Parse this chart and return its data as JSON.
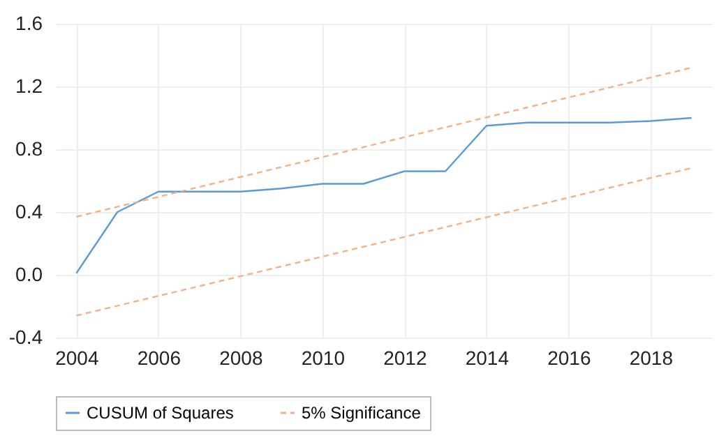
{
  "chart_data": {
    "type": "line",
    "xlim": [
      2003.5,
      2019.5
    ],
    "xticks": [
      2004,
      2006,
      2008,
      2010,
      2012,
      2014,
      2016,
      2018
    ],
    "ylim": [
      -0.4,
      1.6
    ],
    "yticks": [
      {
        "value": -0.4,
        "label": "-0.4"
      },
      {
        "value": 0,
        "label": "0.0"
      },
      0.4,
      0.8,
      1.2,
      1.6
    ],
    "grid": true,
    "legend": "bottom",
    "marker": "none",
    "series": [
      {
        "name": "CUSUM of Squares",
        "color": "#5b9bd5",
        "line_style": "solid",
        "x": [
          2004,
          2005,
          2006,
          2007,
          2008,
          2009,
          2010,
          2011,
          2012,
          2013,
          2014,
          2015,
          2016,
          2017,
          2018,
          2019
        ],
        "values": [
          0.01,
          0.4,
          0.53,
          0.53,
          0.53,
          0.55,
          0.58,
          0.58,
          0.66,
          0.66,
          0.95,
          0.97,
          0.97,
          0.97,
          0.98,
          1.0
        ]
      },
      {
        "name": "5% Significance",
        "color": "#f4b183",
        "line_style": "dashed",
        "x": [
          2004,
          2019
        ],
        "values": [
          0.37,
          1.32
        ]
      },
      {
        "color": "#f4b183",
        "line_style": "dashed",
        "x": [
          2004,
          2019
        ],
        "values": [
          -0.26,
          0.68
        ]
      }
    ]
  }
}
